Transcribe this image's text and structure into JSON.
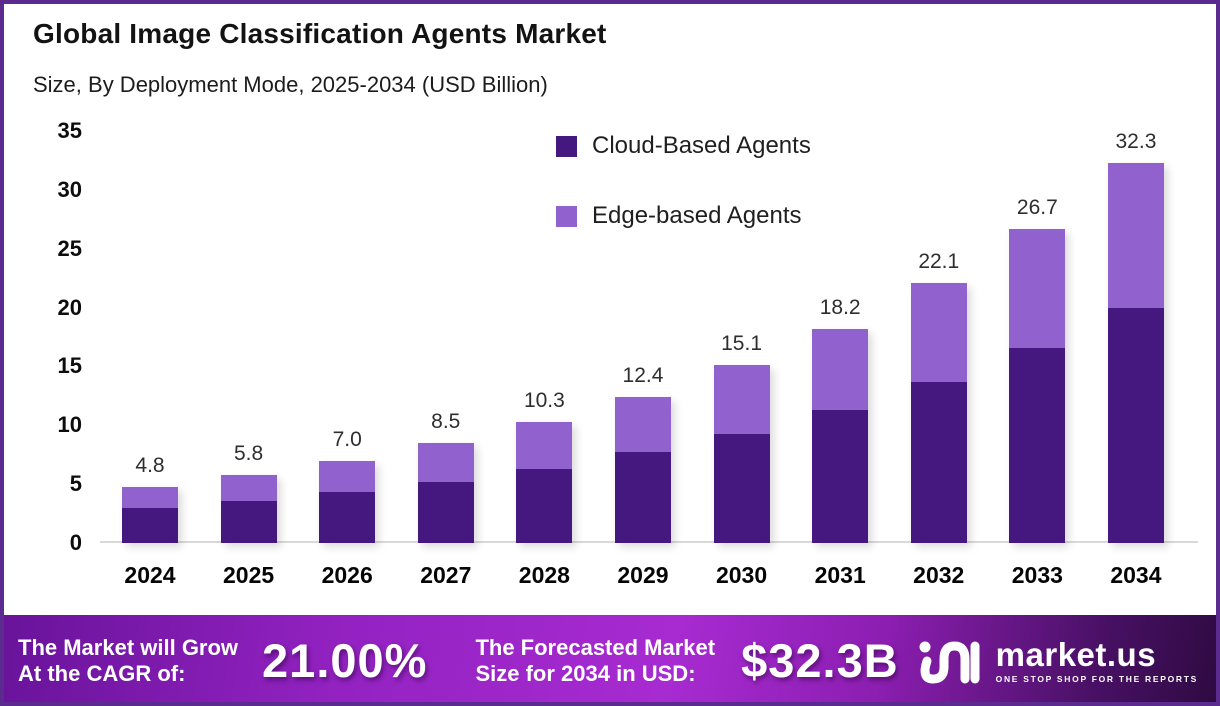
{
  "title": "Global Image Classification Agents Market",
  "subtitle": "Size, By Deployment Mode, 2025-2034 (USD Billion)",
  "chart_data": {
    "type": "bar",
    "stacked": true,
    "title": "Global Image Classification Agents Market",
    "subtitle": "Size, By Deployment Mode, 2025-2034 (USD Billion)",
    "xlabel": "",
    "ylabel": "USD Billion",
    "ylim": [
      0,
      35
    ],
    "yticks": [
      0,
      5,
      10,
      15,
      20,
      25,
      30,
      35
    ],
    "grid": false,
    "legend_position": "top-center",
    "categories": [
      "2024",
      "2025",
      "2026",
      "2027",
      "2028",
      "2029",
      "2030",
      "2031",
      "2032",
      "2033",
      "2034"
    ],
    "series": [
      {
        "name": "Cloud-Based Agents",
        "color": "#45187f",
        "values": [
          3.0,
          3.6,
          4.3,
          5.2,
          6.3,
          7.7,
          9.3,
          11.3,
          13.7,
          16.6,
          20.0
        ]
      },
      {
        "name": "Edge-based Agents",
        "color": "#9161ce",
        "values": [
          1.8,
          2.2,
          2.7,
          3.3,
          4.0,
          4.7,
          5.8,
          6.9,
          8.4,
          10.1,
          12.3
        ]
      }
    ],
    "totals": [
      4.8,
      5.8,
      7.0,
      8.5,
      10.3,
      12.4,
      15.1,
      18.2,
      22.1,
      26.7,
      32.3
    ]
  },
  "footer": {
    "cagr_label_line1": "The Market will Grow",
    "cagr_label_line2": "At the CAGR of:",
    "cagr_value": "21.00%",
    "forecast_label_line1": "The Forecasted Market",
    "forecast_label_line2": "Size for 2034 in USD:",
    "forecast_value": "$32.3B",
    "brand_name": "market.us",
    "brand_tagline": "ONE STOP SHOP FOR THE REPORTS"
  },
  "colors": {
    "cloud_bar": "#45187f",
    "edge_bar": "#9161ce",
    "frame_border": "#5b2b8f",
    "axis_line": "#d9d9d9",
    "footer_gradient_start": "#68139a",
    "footer_gradient_mid": "#a72bd1",
    "footer_gradient_end": "#2e0a40"
  }
}
